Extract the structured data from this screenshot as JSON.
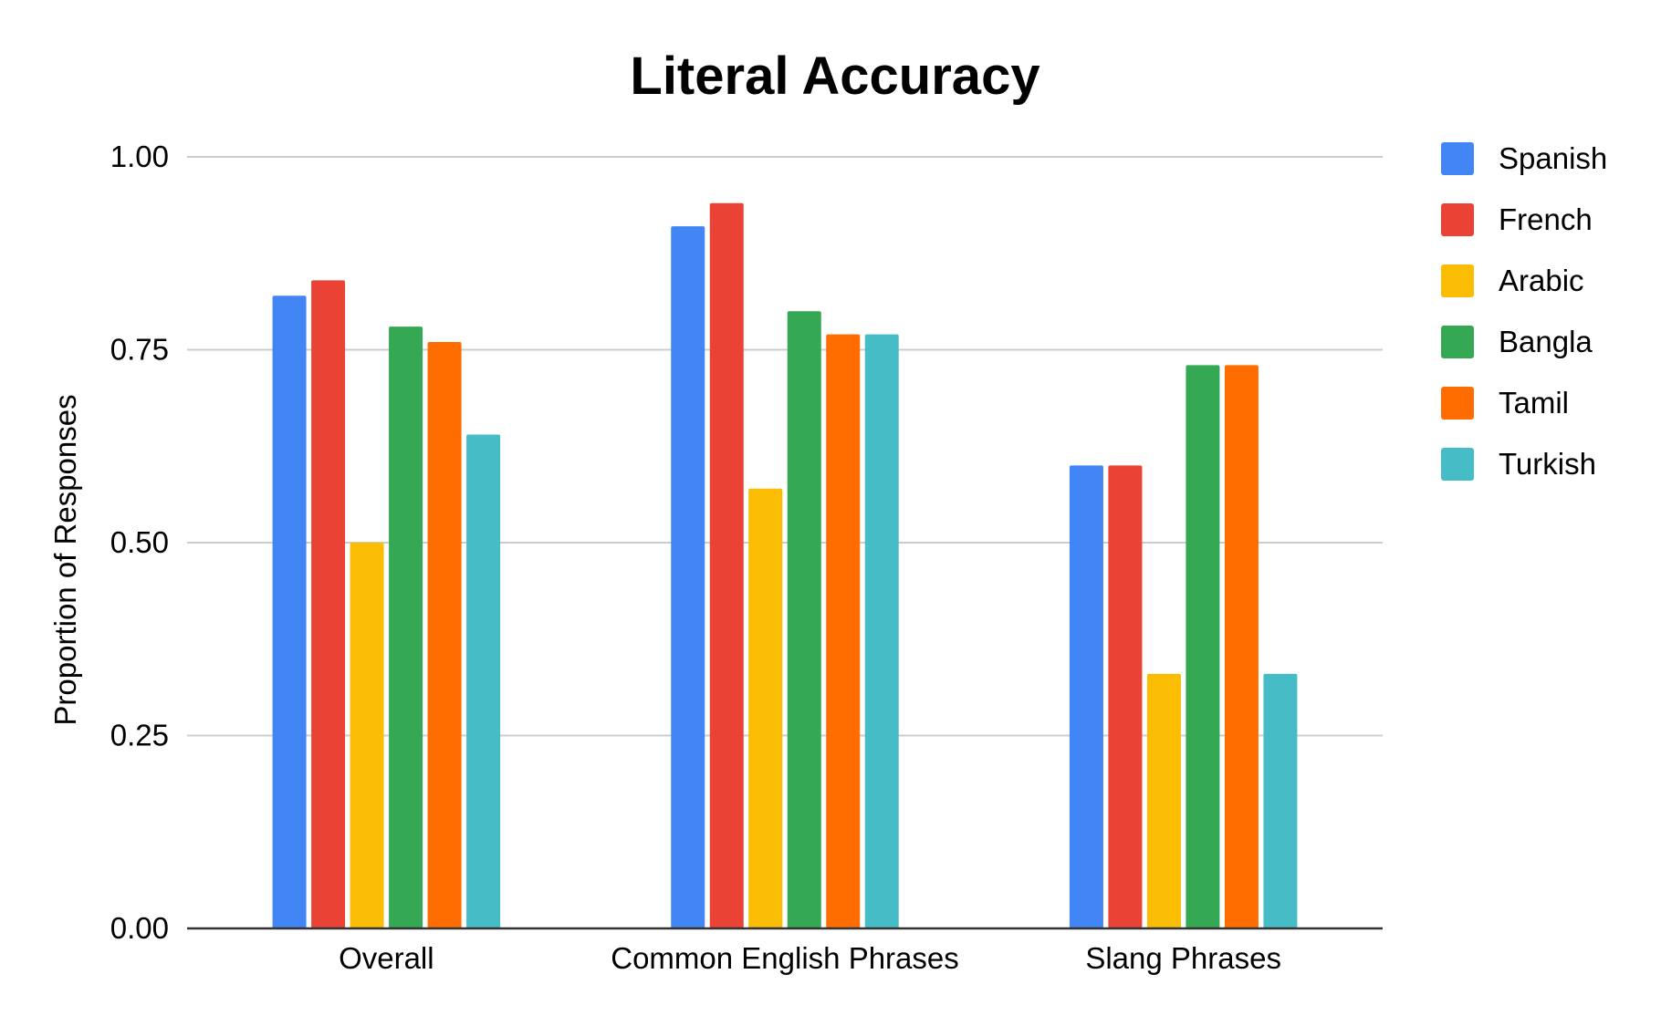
{
  "chart_data": {
    "type": "bar",
    "title": "Literal Accuracy",
    "xlabel": "",
    "ylabel": "Proportion of Responses",
    "categories": [
      "Overall",
      "Common English Phrases",
      "Slang Phrases"
    ],
    "ylim": [
      0,
      1
    ],
    "yticks": [
      "0.00",
      "0.25",
      "0.50",
      "0.75",
      "1.00"
    ],
    "grid": true,
    "legend_position": "right",
    "series": [
      {
        "name": "Spanish",
        "color": "#4285F4",
        "values": [
          0.82,
          0.91,
          0.6
        ]
      },
      {
        "name": "French",
        "color": "#EA4335",
        "values": [
          0.84,
          0.94,
          0.6
        ]
      },
      {
        "name": "Arabic",
        "color": "#FBBC04",
        "values": [
          0.5,
          0.57,
          0.33
        ]
      },
      {
        "name": "Bangla",
        "color": "#34A853",
        "values": [
          0.78,
          0.8,
          0.73
        ]
      },
      {
        "name": "Tamil",
        "color": "#FF6D01",
        "values": [
          0.76,
          0.77,
          0.73
        ]
      },
      {
        "name": "Turkish",
        "color": "#46BDC6",
        "values": [
          0.64,
          0.77,
          0.33
        ]
      }
    ]
  }
}
